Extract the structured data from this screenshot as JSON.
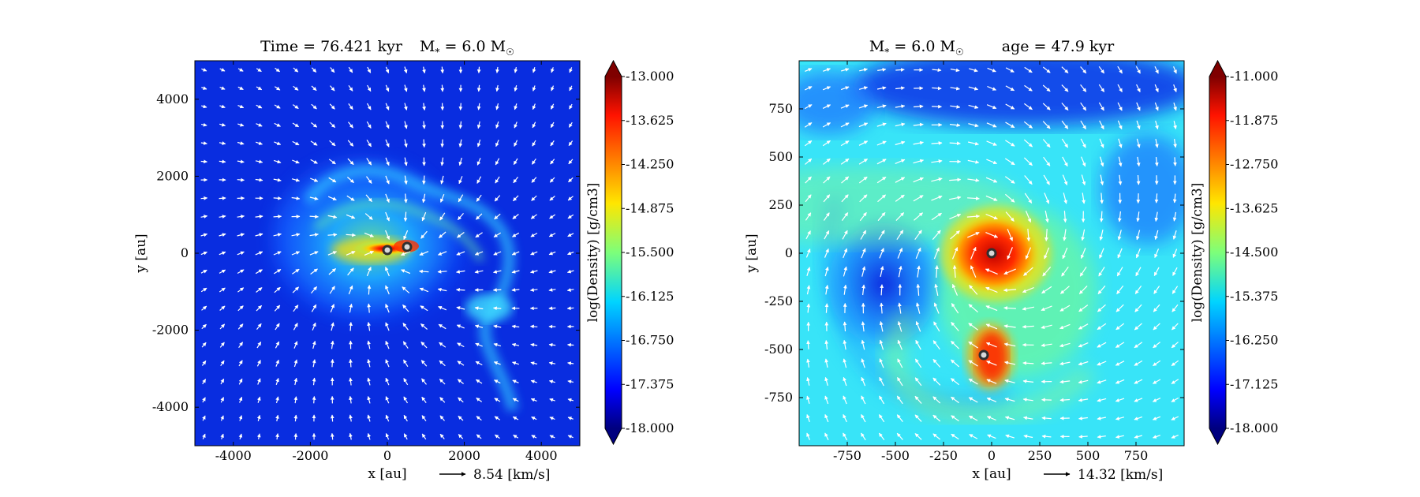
{
  "chart_data": [
    {
      "type": "heatmap",
      "title_parts": [
        "Time = 76.421 kyr",
        "M",
        "*",
        " = 6.0 M",
        "☉"
      ],
      "xlabel": "x [au]",
      "ylabel": "y [au]",
      "xlim": [
        -5000,
        5000
      ],
      "ylim": [
        -5000,
        5000
      ],
      "xticks": [
        -4000,
        -2000,
        0,
        2000,
        4000
      ],
      "yticks": [
        4000,
        2000,
        0,
        -2000,
        -4000
      ],
      "colorbar_label": "log(Density) [g/cm3]",
      "colorbar_range": [
        -18.0,
        -13.0
      ],
      "colorbar_ticks": [
        "-13.000",
        "-13.625",
        "-14.250",
        "-14.875",
        "-15.500",
        "-16.125",
        "-16.750",
        "-17.375",
        "-18.000"
      ],
      "velocity_key": "8.54 [km/s]",
      "sink_particles": [
        {
          "x": -30,
          "y": 10
        },
        {
          "x": 480,
          "y": 90
        }
      ],
      "colormap": "jet",
      "grid": false
    },
    {
      "type": "heatmap",
      "title_parts": [
        "M",
        "*",
        " = 6.0 M",
        "☉",
        "age = 47.9 kyr"
      ],
      "xlabel": "x [au]",
      "ylabel": "y [au]",
      "xlim": [
        -1000,
        1000
      ],
      "ylim": [
        -1000,
        1000
      ],
      "xticks": [
        -750,
        -500,
        -250,
        0,
        250,
        500,
        750
      ],
      "yticks": [
        750,
        500,
        250,
        0,
        -250,
        -500,
        -750
      ],
      "colorbar_label": "log(Density) [g/cm3]",
      "colorbar_range": [
        -18.0,
        -11.0
      ],
      "colorbar_ticks": [
        "-11.000",
        "-11.875",
        "-12.750",
        "-13.625",
        "-14.500",
        "-15.375",
        "-16.250",
        "-17.125",
        "-18.000"
      ],
      "velocity_key": "14.32 [km/s]",
      "sink_particles": [
        {
          "x": 0,
          "y": 0
        },
        {
          "x": -45,
          "y": -535
        }
      ],
      "colormap": "jet",
      "grid": false
    }
  ]
}
